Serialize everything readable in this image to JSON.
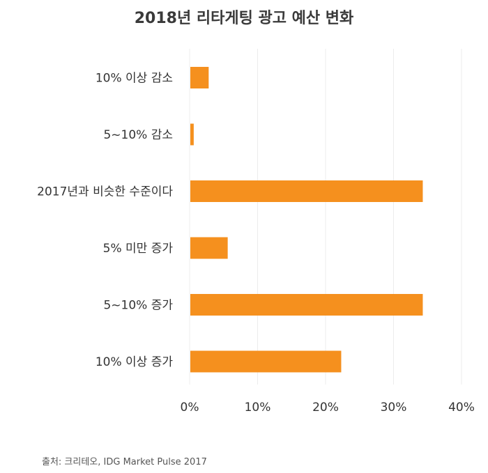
{
  "chart_data": {
    "type": "bar",
    "orientation": "horizontal",
    "title": "2018년 리타게팅 광고 예산 변화",
    "categories": [
      "10% 이상 감소",
      "5~10% 감소",
      "2017년과 비슷한 수준이다",
      "5% 미만 증가",
      "5~10% 증가",
      "10% 이상 증가"
    ],
    "values": [
      2.7,
      0.5,
      34.2,
      5.5,
      34.2,
      22.2
    ],
    "unit": "%",
    "xlim": [
      0,
      40
    ],
    "xticks": [
      0,
      10,
      20,
      30,
      40
    ],
    "xtick_labels": [
      "0%",
      "10%",
      "20%",
      "30%",
      "40%"
    ],
    "xlabel": "",
    "ylabel": "",
    "grid": true,
    "legend": "none",
    "bar_color": "#f5901e",
    "grid_color": "#ececec",
    "source": "출처: 크리테오, IDG Market Pulse 2017"
  }
}
